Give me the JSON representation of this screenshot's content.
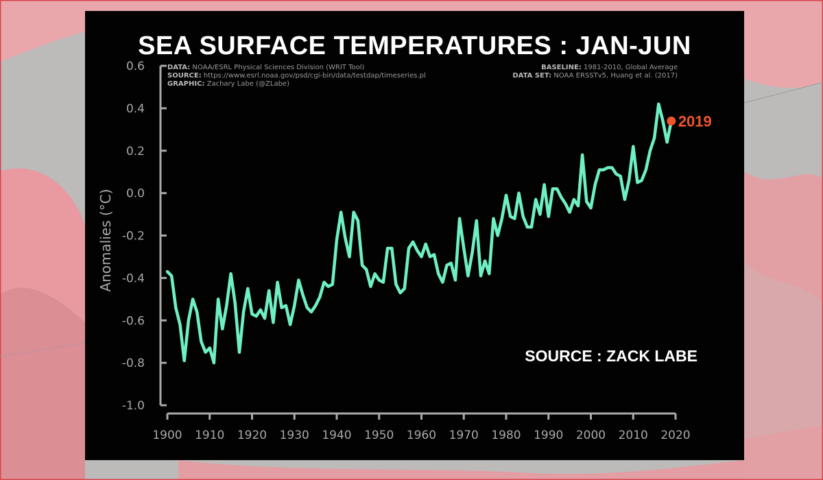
{
  "header": {
    "title": "SEA SURFACE TEMPERATURES : JAN-JUN"
  },
  "metadata": {
    "left": [
      {
        "label": "DATA:",
        "value": "NOAA/ESRL Physical Sciences Division (WRIT Tool)"
      },
      {
        "label": "SOURCE:",
        "value": "https://www.esrl.noaa.gov/psd/cgi-bin/data/testdap/timeseries.pl"
      },
      {
        "label": "GRAPHIC:",
        "value": "Zachary Labe (@ZLabe)"
      }
    ],
    "right": [
      {
        "label": "BASELINE:",
        "value": "1981-2010, Global Average"
      },
      {
        "label": "DATA SET:",
        "value": "NOAA ERSSTv5, Huang et al. (2017)"
      }
    ]
  },
  "source_note": "SOURCE : ZACK LABE",
  "colors": {
    "line": "#6ff0c4",
    "highlight": "#f0542a",
    "background": "#020202",
    "axis": "#a9a9a9"
  },
  "chart_data": {
    "type": "line",
    "title": "SEA SURFACE TEMPERATURES : JAN-JUN",
    "xlabel": "",
    "ylabel": "Anomalies (°C)",
    "xlim": [
      1900,
      2020
    ],
    "ylim": [
      -1.0,
      0.6
    ],
    "x_ticks": [
      1900,
      1910,
      1920,
      1930,
      1940,
      1950,
      1960,
      1970,
      1980,
      1990,
      2000,
      2010,
      2020
    ],
    "y_ticks": [
      -1.0,
      -0.8,
      -0.6,
      -0.4,
      -0.2,
      0.0,
      0.2,
      0.4,
      0.6
    ],
    "y_tick_labels": [
      "-1.0",
      "-0.8",
      "-0.6",
      "-0.4",
      "-0.2",
      "0.0",
      "0.2",
      "0.4",
      "0.6"
    ],
    "grid": false,
    "series": [
      {
        "x": [
          1900,
          1901,
          1902,
          1903,
          1904,
          1905,
          1906,
          1907,
          1908,
          1909,
          1910,
          1911,
          1912,
          1913,
          1914,
          1915,
          1916,
          1917,
          1918,
          1919,
          1920,
          1921,
          1922,
          1923,
          1924,
          1925,
          1926,
          1927,
          1928,
          1929,
          1930,
          1931,
          1932,
          1933,
          1934,
          1935,
          1936,
          1937,
          1938,
          1939,
          1940,
          1941,
          1942,
          1943,
          1944,
          1945,
          1946,
          1947,
          1948,
          1949,
          1950,
          1951,
          1952,
          1953,
          1954,
          1955,
          1956,
          1957,
          1958,
          1959,
          1960,
          1961,
          1962,
          1963,
          1964,
          1965,
          1966,
          1967,
          1968,
          1969,
          1970,
          1971,
          1972,
          1973,
          1974,
          1975,
          1976,
          1977,
          1978,
          1979,
          1980,
          1981,
          1982,
          1983,
          1984,
          1985,
          1986,
          1987,
          1988,
          1989,
          1990,
          1991,
          1992,
          1993,
          1994,
          1995,
          1996,
          1997,
          1998,
          1999,
          2000,
          2001,
          2002,
          2003,
          2004,
          2005,
          2006,
          2007,
          2008,
          2009,
          2010,
          2011,
          2012,
          2013,
          2014,
          2015,
          2016,
          2017,
          2018,
          2019
        ],
        "values": [
          -0.37,
          -0.39,
          -0.54,
          -0.62,
          -0.79,
          -0.6,
          -0.5,
          -0.56,
          -0.7,
          -0.75,
          -0.73,
          -0.8,
          -0.5,
          -0.64,
          -0.53,
          -0.38,
          -0.52,
          -0.75,
          -0.56,
          -0.45,
          -0.57,
          -0.58,
          -0.55,
          -0.59,
          -0.46,
          -0.61,
          -0.42,
          -0.54,
          -0.53,
          -0.62,
          -0.53,
          -0.41,
          -0.48,
          -0.54,
          -0.56,
          -0.53,
          -0.49,
          -0.42,
          -0.44,
          -0.43,
          -0.22,
          -0.09,
          -0.21,
          -0.3,
          -0.09,
          -0.13,
          -0.34,
          -0.36,
          -0.44,
          -0.38,
          -0.41,
          -0.42,
          -0.26,
          -0.26,
          -0.43,
          -0.47,
          -0.45,
          -0.26,
          -0.23,
          -0.27,
          -0.3,
          -0.24,
          -0.3,
          -0.29,
          -0.38,
          -0.42,
          -0.34,
          -0.33,
          -0.41,
          -0.12,
          -0.26,
          -0.39,
          -0.28,
          -0.13,
          -0.39,
          -0.32,
          -0.38,
          -0.12,
          -0.2,
          -0.12,
          -0.01,
          -0.11,
          -0.12,
          0.0,
          -0.11,
          -0.16,
          -0.16,
          -0.03,
          -0.1,
          0.04,
          -0.11,
          0.02,
          0.02,
          -0.02,
          -0.05,
          -0.09,
          -0.03,
          -0.06,
          0.18,
          -0.04,
          -0.07,
          0.04,
          0.11,
          0.11,
          0.12,
          0.12,
          0.09,
          0.08,
          -0.03,
          0.06,
          0.22,
          0.05,
          0.06,
          0.11,
          0.2,
          0.26,
          0.42,
          0.34,
          0.24,
          0.34
        ]
      }
    ],
    "highlight": {
      "x": 2019,
      "value": 0.34,
      "label": "2019"
    }
  }
}
